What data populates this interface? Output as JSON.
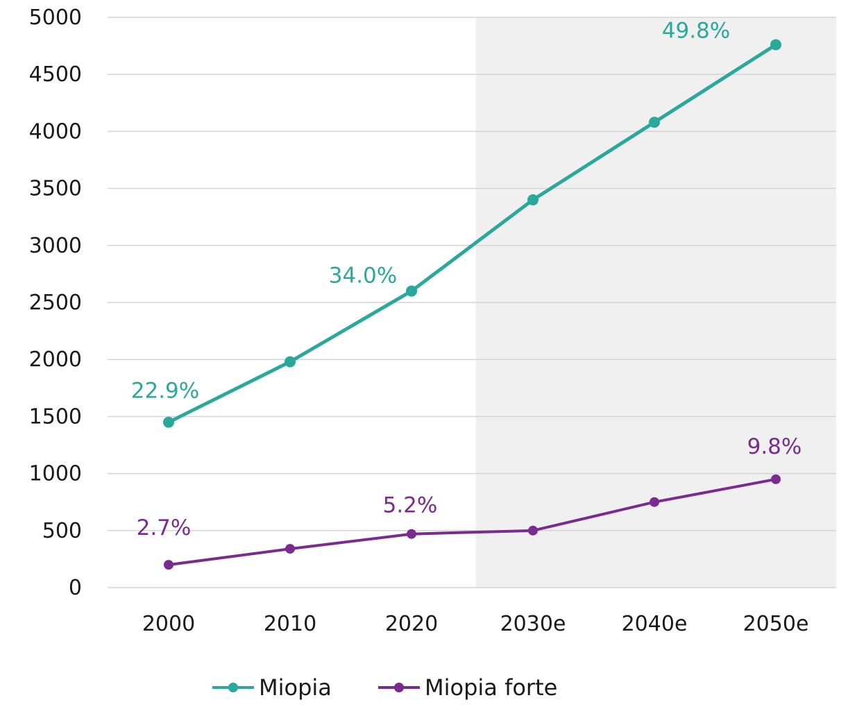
{
  "chart_data": {
    "type": "line",
    "categories": [
      "2000",
      "2010",
      "2020",
      "2030e",
      "2040e",
      "2050e"
    ],
    "ylim": [
      0,
      5000
    ],
    "yticks": [
      0,
      500,
      1000,
      1500,
      2000,
      2500,
      3000,
      3500,
      4000,
      4500,
      5000
    ],
    "grid": "horizontal",
    "projection_shading": {
      "from_category": "2030e",
      "color": "#f0f0f0"
    },
    "legend_position": "bottom",
    "series": [
      {
        "name": "Miopia",
        "color": "#2aa89b",
        "values": [
          1450,
          1980,
          2600,
          3400,
          4080,
          4760
        ],
        "data_labels": [
          {
            "index": 0,
            "text": "22.9%"
          },
          {
            "index": 2,
            "text": "34.0%"
          },
          {
            "index": 5,
            "text": "49.8%"
          }
        ]
      },
      {
        "name": "Miopia forte",
        "color": "#7a2b8f",
        "values": [
          200,
          340,
          470,
          500,
          750,
          950
        ],
        "data_labels": [
          {
            "index": 0,
            "text": "2.7%"
          },
          {
            "index": 2,
            "text": "5.2%"
          },
          {
            "index": 5,
            "text": "9.8%"
          }
        ]
      }
    ]
  }
}
